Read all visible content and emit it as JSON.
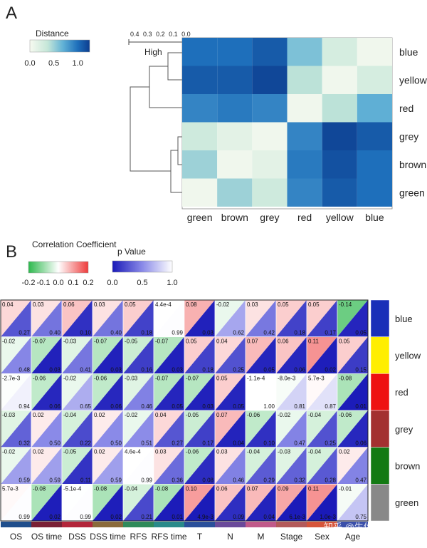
{
  "panels": {
    "a_label": "A",
    "b_label": "B"
  },
  "watermark": "知乎 @生信风暴",
  "chart_data": [
    {
      "type": "heatmap",
      "panel": "A",
      "legend_title": "Distance",
      "legend_ticks": [
        "0.0",
        "0.5",
        "1.0"
      ],
      "legend_range": [
        0,
        1.25
      ],
      "dendro_scale_ticks": [
        "0.4",
        "0.3",
        "0.2",
        "0.1",
        "0.0"
      ],
      "dendro_scale_label": "High",
      "columns": [
        "green",
        "brown",
        "grey",
        "red",
        "yellow",
        "blue"
      ],
      "rows": [
        "blue",
        "yellow",
        "red",
        "grey",
        "brown",
        "green"
      ],
      "values": [
        [
          1.0,
          1.0,
          1.1,
          0.6,
          0.25,
          0.05
        ],
        [
          1.1,
          1.1,
          1.2,
          0.4,
          0.05,
          0.25
        ],
        [
          0.9,
          0.95,
          0.9,
          0.05,
          0.4,
          0.7
        ],
        [
          0.3,
          0.15,
          0.05,
          0.9,
          1.2,
          1.1
        ],
        [
          0.5,
          0.05,
          0.15,
          0.95,
          1.15,
          1.0
        ],
        [
          0.05,
          0.5,
          0.3,
          0.9,
          1.1,
          1.0
        ]
      ]
    },
    {
      "type": "heatmap",
      "panel": "B",
      "corr_legend_title": "Correlation Coefficient",
      "corr_legend_ticks": [
        "-0.2",
        "-0.1",
        "0.0",
        "0.1",
        "0.2"
      ],
      "p_legend_title": "p Value",
      "p_legend_ticks": [
        "0.0",
        "0.5",
        "1.0"
      ],
      "columns": [
        "OS",
        "OS time",
        "DSS",
        "DSS time",
        "RFS",
        "RFS time",
        "T",
        "N",
        "M",
        "Stage",
        "Sex",
        "Age"
      ],
      "column_colors": [
        "#1f4e8c",
        "#7a2135",
        "#b3263a",
        "#8a6a3a",
        "#2f8a5a",
        "#2a8a8a",
        "#2a4f9a",
        "#6a4a9a",
        "#c05a8a",
        "#b35a5a",
        "#d6553a",
        "#3a4faa"
      ],
      "rows": [
        "blue",
        "yellow",
        "red",
        "grey",
        "brown",
        "green"
      ],
      "row_colors": [
        "#1a2fb8",
        "#ffee00",
        "#ee1111",
        "#a33030",
        "#137a13",
        "#888888"
      ],
      "corr_labels": [
        [
          "0.04",
          "0.03",
          "0.06",
          "0.03",
          "0.05",
          "4.4e-4",
          "0.08",
          "-0.02",
          "0.03",
          "0.05",
          "0.05",
          "-0.14"
        ],
        [
          "-0.02",
          "-0.07",
          "-0.03",
          "-0.07",
          "-0.05",
          "-0.07",
          "0.05",
          "0.04",
          "0.07",
          "0.06",
          "0.11",
          "0.05"
        ],
        [
          "-2.7e-3",
          "-0.06",
          "-0.02",
          "-0.06",
          "-0.03",
          "-0.07",
          "-0.07",
          "0.05",
          "-1.1e-4",
          "-8.0e-3",
          "5.7e-3",
          "-0.08"
        ],
        [
          "-0.03",
          "0.02",
          "-0.04",
          "0.02",
          "-0.02",
          "0.04",
          "-0.05",
          "0.07",
          "-0.06",
          "-0.02",
          "-0.04",
          "-0.06"
        ],
        [
          "-0.02",
          "0.02",
          "-0.05",
          "0.02",
          "4.6e-4",
          "0.03",
          "-0.06",
          "0.03",
          "-0.04",
          "-0.03",
          "-0.04",
          "0.02"
        ],
        [
          "5.7e-3",
          "-0.08",
          "-5.1e-4",
          "-0.08",
          "-0.04",
          "-0.08",
          "0.10",
          "0.06",
          "0.07",
          "0.09",
          "0.11",
          "-0.01"
        ]
      ],
      "p_labels": [
        [
          "0.27",
          "0.40",
          "0.10",
          "0.40",
          "0.18",
          "0.99",
          "0.03",
          "0.62",
          "0.42",
          "0.18",
          "0.17",
          "0.05"
        ],
        [
          "0.48",
          "0.03",
          "0.41",
          "0.03",
          "0.16",
          "0.03",
          "0.18",
          "0.25",
          "0.05",
          "0.06",
          "0.02",
          "0.15"
        ],
        [
          "0.94",
          "0.06",
          "0.65",
          "0.06",
          "0.46",
          "0.05",
          "0.03",
          "0.05",
          "1.00",
          "0.81",
          "0.87",
          "0.01"
        ],
        [
          "0.32",
          "0.50",
          "0.22",
          "0.50",
          "0.51",
          "0.27",
          "0.17",
          "0.04",
          "0.10",
          "0.47",
          "0.25",
          "0.06"
        ],
        [
          "0.59",
          "0.59",
          "0.11",
          "0.59",
          "0.99",
          "0.36",
          "0.08",
          "0.46",
          "0.29",
          "0.32",
          "0.28",
          "0.47"
        ],
        [
          "0.99",
          "0.02",
          "0.99",
          "0.02",
          "0.21",
          "0.01",
          "4.9e-3",
          "0.09",
          "0.04",
          "6.1e-3",
          "1.0e-3",
          "0.75"
        ]
      ]
    }
  ]
}
